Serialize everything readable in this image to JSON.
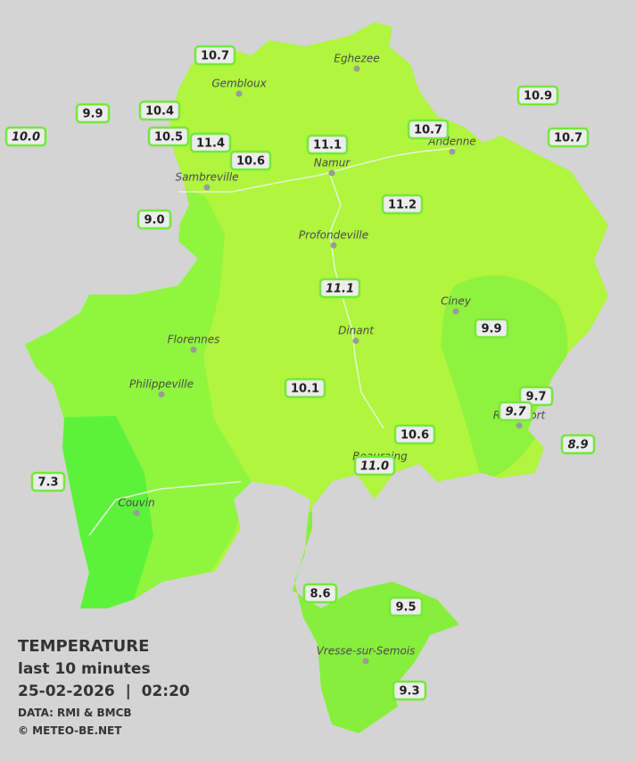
{
  "cities": [
    {
      "name": "Eghezee"
    },
    {
      "name": "Gembloux"
    },
    {
      "name": "Andenne"
    },
    {
      "name": "Namur"
    },
    {
      "name": "Sambreville"
    },
    {
      "name": "Profondeville"
    },
    {
      "name": "Ciney"
    },
    {
      "name": "Dinant"
    },
    {
      "name": "Florennes"
    },
    {
      "name": "Philippeville"
    },
    {
      "name": "Rochefort"
    },
    {
      "name": "Beauraing"
    },
    {
      "name": "Couvin"
    },
    {
      "name": "Vresse-sur-Semois"
    }
  ],
  "stations": [
    {
      "value": "10.7",
      "italic": false
    },
    {
      "value": "10.4",
      "italic": false
    },
    {
      "value": "9.9",
      "italic": false
    },
    {
      "value": "10.0",
      "italic": true
    },
    {
      "value": "10.5",
      "italic": false
    },
    {
      "value": "11.4",
      "italic": false
    },
    {
      "value": "10.6",
      "italic": false
    },
    {
      "value": "11.1",
      "italic": false
    },
    {
      "value": "10.7",
      "italic": false
    },
    {
      "value": "10.9",
      "italic": false
    },
    {
      "value": "10.7",
      "italic": false
    },
    {
      "value": "9.0",
      "italic": false
    },
    {
      "value": "11.2",
      "italic": false
    },
    {
      "value": "11.1",
      "italic": true
    },
    {
      "value": "9.9",
      "italic": false
    },
    {
      "value": "10.1",
      "italic": false
    },
    {
      "value": "9.7",
      "italic": false
    },
    {
      "value": "9.7",
      "italic": true
    },
    {
      "value": "10.6",
      "italic": false
    },
    {
      "value": "11.0",
      "italic": true
    },
    {
      "value": "8.9",
      "italic": true
    },
    {
      "value": "7.3",
      "italic": false
    },
    {
      "value": "8.6",
      "italic": false
    },
    {
      "value": "9.5",
      "italic": false
    },
    {
      "value": "9.3",
      "italic": false
    }
  ],
  "legend": {
    "title": "TEMPERATURE",
    "subtitle": "last 10 minutes",
    "datetime": "25-02-2026  |  02:20",
    "source": "DATA: RMI & BMCB",
    "copyright": "© METEO-BE.NET"
  }
}
